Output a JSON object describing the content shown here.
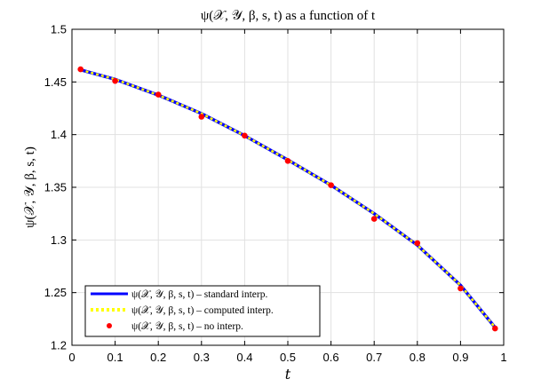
{
  "chart_data": {
    "type": "line",
    "title": "ψ(𝒳, 𝒴, β, s, t) as a function of t",
    "xlabel": "t",
    "ylabel": "ψ(𝒳, 𝒴, β, s, t)",
    "xlim": [
      0,
      1
    ],
    "ylim": [
      1.2,
      1.5
    ],
    "x_ticks": [
      0,
      0.1,
      0.2,
      0.3,
      0.4,
      0.5,
      0.6,
      0.7,
      0.8,
      0.9,
      1
    ],
    "x_tick_labels": [
      "0",
      "0.1",
      "0.2",
      "0.3",
      "0.4",
      "0.5",
      "0.6",
      "0.7",
      "0.8",
      "0.9",
      "1"
    ],
    "y_ticks": [
      1.2,
      1.25,
      1.3,
      1.35,
      1.4,
      1.45,
      1.5
    ],
    "y_tick_labels": [
      "1.2",
      "1.25",
      "1.3",
      "1.35",
      "1.4",
      "1.45",
      "1.5"
    ],
    "grid": true,
    "legend_position": "bottom-left",
    "series": [
      {
        "name": "ψ(𝒳, 𝒴, β, s, t) – standard interp.",
        "style": "solid-line",
        "color": "#0000ff",
        "x": [
          0.02,
          0.1,
          0.2,
          0.3,
          0.4,
          0.5,
          0.6,
          0.7,
          0.8,
          0.9,
          0.98
        ],
        "y": [
          1.4615,
          1.4525,
          1.4375,
          1.42,
          1.399,
          1.376,
          1.352,
          1.325,
          1.295,
          1.257,
          1.217
        ]
      },
      {
        "name": "ψ(𝒳, 𝒴, β, s, t) – computed interp.",
        "style": "dotted-line",
        "color": "#ffff00",
        "x": [
          0.02,
          0.1,
          0.2,
          0.3,
          0.4,
          0.5,
          0.6,
          0.7,
          0.8,
          0.9,
          0.98
        ],
        "y": [
          1.4615,
          1.4525,
          1.4375,
          1.42,
          1.399,
          1.376,
          1.352,
          1.325,
          1.295,
          1.257,
          1.217
        ]
      },
      {
        "name": "ψ(𝒳, 𝒴, β, s, t) – no interp.",
        "style": "markers",
        "color": "#ff0000",
        "x": [
          0.02,
          0.1,
          0.2,
          0.3,
          0.4,
          0.5,
          0.6,
          0.7,
          0.8,
          0.9,
          0.98
        ],
        "y": [
          1.462,
          1.451,
          1.438,
          1.417,
          1.399,
          1.375,
          1.352,
          1.32,
          1.297,
          1.254,
          1.216
        ]
      }
    ]
  }
}
